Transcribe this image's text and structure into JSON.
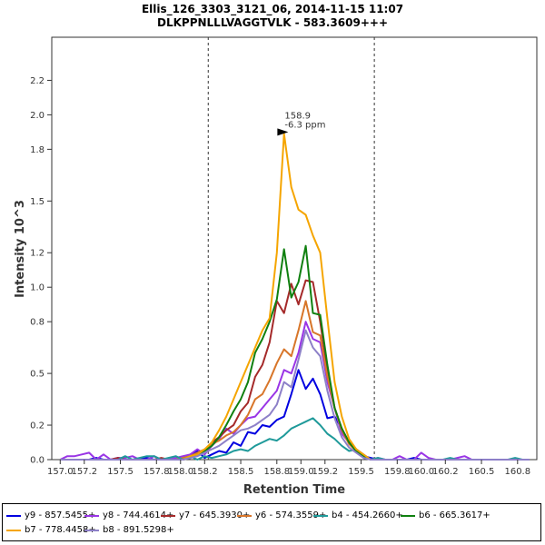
{
  "chart_data": {
    "type": "line",
    "title": "Ellis_126_3303_3121_06, 2014-11-15 11:07",
    "subtitle": "DLKPPNLLLVAGGTVLK - 583.3609+++",
    "xlabel": "Retention Time",
    "ylabel": "Intensity 10^3",
    "xlim": [
      156.93,
      160.96
    ],
    "ylim": [
      0,
      2.45
    ],
    "xticks": [
      157.0,
      157.2,
      157.5,
      157.8,
      158.0,
      158.2,
      158.5,
      158.8,
      159.0,
      159.2,
      159.5,
      159.8,
      160.0,
      160.2,
      160.5,
      160.8
    ],
    "xtick_labels": [
      "157.0",
      "157.2",
      "157.5",
      "157.8",
      "158.0",
      "158.2",
      "158.5",
      "158.8",
      "159.0",
      "159.2",
      "159.5",
      "159.8",
      "160.0",
      "160.2",
      "160.5",
      "160.8"
    ],
    "yticks": [
      0.0,
      0.2,
      0.5,
      0.8,
      1.0,
      1.2,
      1.5,
      1.8,
      2.0,
      2.2
    ],
    "ytick_labels": [
      "0.0",
      "0.2",
      "0.5",
      "0.8",
      "1.0",
      "1.2",
      "1.5",
      "1.8",
      "2.0",
      "2.2"
    ],
    "boundaries": [
      158.23,
      159.61
    ],
    "annotation": {
      "x": 158.91,
      "y": 1.9,
      "line1": "158.9",
      "line2": "-6.3 ppm",
      "color": "#f0a000"
    },
    "x": [
      157.0,
      157.06,
      157.12,
      157.18,
      157.24,
      157.3,
      157.36,
      157.42,
      157.48,
      157.54,
      157.6,
      157.66,
      157.72,
      157.78,
      157.84,
      157.9,
      157.96,
      158.02,
      158.08,
      158.14,
      158.2,
      158.26,
      158.32,
      158.38,
      158.44,
      158.5,
      158.56,
      158.62,
      158.68,
      158.74,
      158.8,
      158.86,
      158.92,
      158.98,
      159.04,
      159.1,
      159.16,
      159.22,
      159.28,
      159.34,
      159.4,
      159.46,
      159.52,
      159.58,
      159.64,
      159.7,
      159.76,
      159.82,
      159.88,
      159.94,
      160.0,
      160.06,
      160.12,
      160.18,
      160.24,
      160.3,
      160.36,
      160.42,
      160.48,
      160.54,
      160.6,
      160.66,
      160.72,
      160.78,
      160.84,
      160.9
    ],
    "series": [
      {
        "name": "y9 - 857.5455+",
        "color": "#0000e0",
        "values": [
          0.0,
          0.0,
          0.0,
          0.0,
          0.0,
          0.01,
          0.0,
          0.0,
          0.01,
          0.0,
          0.0,
          0.0,
          0.01,
          0.0,
          0.0,
          0.0,
          0.0,
          0.01,
          0.02,
          0.05,
          0.01,
          0.03,
          0.05,
          0.04,
          0.1,
          0.08,
          0.16,
          0.15,
          0.2,
          0.19,
          0.23,
          0.25,
          0.38,
          0.52,
          0.41,
          0.47,
          0.38,
          0.24,
          0.25,
          0.18,
          0.1,
          0.06,
          0.02,
          0.01,
          0.0,
          0.0,
          0.0,
          0.0,
          0.0,
          0.01,
          0.0,
          0.0,
          0.0,
          0.0,
          0.0,
          0.0,
          0.0,
          0.0,
          0.0,
          0.0,
          0.0,
          0.0,
          0.0,
          0.0,
          0.0,
          0.0
        ]
      },
      {
        "name": "y8 - 744.4614+",
        "color": "#9a35e6",
        "values": [
          0.0,
          0.02,
          0.02,
          0.03,
          0.04,
          0.0,
          0.03,
          0.0,
          0.01,
          0.01,
          0.02,
          0.0,
          0.0,
          0.02,
          0.0,
          0.0,
          0.01,
          0.02,
          0.03,
          0.06,
          0.03,
          0.08,
          0.12,
          0.18,
          0.15,
          0.2,
          0.24,
          0.25,
          0.3,
          0.35,
          0.4,
          0.52,
          0.5,
          0.62,
          0.8,
          0.7,
          0.68,
          0.45,
          0.3,
          0.15,
          0.1,
          0.06,
          0.03,
          0.0,
          0.01,
          0.0,
          0.0,
          0.02,
          0.0,
          0.0,
          0.04,
          0.01,
          0.0,
          0.0,
          0.0,
          0.01,
          0.02,
          0.0,
          0.0,
          0.0,
          0.0,
          0.0,
          0.0,
          0.0,
          0.0,
          0.0
        ]
      },
      {
        "name": "y7 - 645.3930+",
        "color": "#a52a2a",
        "values": [
          0.0,
          0.0,
          0.0,
          0.0,
          0.0,
          0.0,
          0.0,
          0.0,
          0.01,
          0.0,
          0.0,
          0.0,
          0.0,
          0.0,
          0.01,
          0.0,
          0.0,
          0.0,
          0.01,
          0.03,
          0.05,
          0.1,
          0.13,
          0.17,
          0.2,
          0.28,
          0.33,
          0.48,
          0.55,
          0.68,
          0.92,
          0.85,
          1.02,
          0.9,
          1.04,
          1.03,
          0.8,
          0.52,
          0.3,
          0.18,
          0.1,
          0.05,
          0.02,
          0.0,
          0.0,
          0.0,
          0.0,
          0.0,
          0.0,
          0.0,
          0.0,
          0.0,
          0.0,
          0.0,
          0.0,
          0.0,
          0.0,
          0.0,
          0.0,
          0.0,
          0.0,
          0.0,
          0.0,
          0.0,
          0.0,
          0.0
        ]
      },
      {
        "name": "y6 - 574.3559+",
        "color": "#d8762a",
        "values": [
          0.0,
          0.0,
          0.0,
          0.0,
          0.0,
          0.0,
          0.0,
          0.0,
          0.0,
          0.0,
          0.0,
          0.0,
          0.0,
          0.0,
          0.0,
          0.0,
          0.0,
          0.01,
          0.02,
          0.04,
          0.06,
          0.09,
          0.11,
          0.14,
          0.16,
          0.2,
          0.26,
          0.35,
          0.38,
          0.46,
          0.56,
          0.64,
          0.6,
          0.75,
          0.92,
          0.74,
          0.72,
          0.48,
          0.3,
          0.17,
          0.09,
          0.05,
          0.02,
          0.0,
          0.0,
          0.0,
          0.0,
          0.0,
          0.0,
          0.0,
          0.0,
          0.0,
          0.0,
          0.0,
          0.0,
          0.0,
          0.0,
          0.0,
          0.0,
          0.0,
          0.0,
          0.0,
          0.0,
          0.0,
          0.0,
          0.0
        ]
      },
      {
        "name": "b4 - 454.2660+",
        "color": "#1f9a9a",
        "values": [
          0.0,
          0.0,
          0.0,
          0.0,
          0.0,
          0.0,
          0.0,
          0.0,
          0.0,
          0.02,
          0.0,
          0.01,
          0.02,
          0.02,
          0.0,
          0.01,
          0.02,
          0.0,
          0.02,
          0.0,
          0.02,
          0.01,
          0.02,
          0.03,
          0.05,
          0.06,
          0.05,
          0.08,
          0.1,
          0.12,
          0.11,
          0.14,
          0.18,
          0.2,
          0.22,
          0.24,
          0.2,
          0.15,
          0.12,
          0.08,
          0.05,
          0.06,
          0.02,
          0.0,
          0.01,
          0.0,
          0.0,
          0.0,
          0.0,
          0.0,
          0.0,
          0.0,
          0.0,
          0.0,
          0.01,
          0.0,
          0.0,
          0.0,
          0.0,
          0.0,
          0.0,
          0.0,
          0.0,
          0.01,
          0.0,
          0.0
        ]
      },
      {
        "name": "b6 - 665.3617+",
        "color": "#108010",
        "values": [
          0.0,
          0.0,
          0.0,
          0.0,
          0.0,
          0.0,
          0.0,
          0.0,
          0.0,
          0.0,
          0.0,
          0.0,
          0.0,
          0.0,
          0.0,
          0.0,
          0.0,
          0.0,
          0.01,
          0.03,
          0.05,
          0.08,
          0.13,
          0.2,
          0.28,
          0.35,
          0.45,
          0.62,
          0.7,
          0.8,
          0.93,
          1.22,
          0.94,
          1.03,
          1.24,
          0.85,
          0.84,
          0.55,
          0.3,
          0.18,
          0.1,
          0.05,
          0.02,
          0.0,
          0.0,
          0.0,
          0.0,
          0.0,
          0.0,
          0.0,
          0.0,
          0.0,
          0.0,
          0.0,
          0.0,
          0.0,
          0.0,
          0.0,
          0.0,
          0.0,
          0.0,
          0.0,
          0.0,
          0.0,
          0.0,
          0.0
        ]
      },
      {
        "name": "b7 - 778.4458+",
        "color": "#f5a500",
        "values": [
          0.0,
          0.0,
          0.0,
          0.0,
          0.0,
          0.0,
          0.0,
          0.0,
          0.0,
          0.0,
          0.0,
          0.0,
          0.0,
          0.0,
          0.0,
          0.0,
          0.0,
          0.0,
          0.02,
          0.03,
          0.06,
          0.1,
          0.17,
          0.25,
          0.35,
          0.45,
          0.55,
          0.65,
          0.75,
          0.82,
          1.2,
          1.89,
          1.58,
          1.45,
          1.42,
          1.3,
          1.2,
          0.82,
          0.45,
          0.25,
          0.12,
          0.06,
          0.03,
          0.0,
          0.0,
          0.0,
          0.0,
          0.0,
          0.0,
          0.0,
          0.0,
          0.0,
          0.0,
          0.0,
          0.0,
          0.0,
          0.0,
          0.0,
          0.0,
          0.0,
          0.0,
          0.0,
          0.0,
          0.0,
          0.0,
          0.0
        ]
      },
      {
        "name": "b8 - 891.5298+",
        "color": "#8d80c8",
        "values": [
          0.0,
          0.0,
          0.0,
          0.0,
          0.0,
          0.0,
          0.0,
          0.0,
          0.0,
          0.0,
          0.0,
          0.0,
          0.0,
          0.0,
          0.0,
          0.0,
          0.0,
          0.0,
          0.01,
          0.02,
          0.04,
          0.06,
          0.08,
          0.11,
          0.14,
          0.17,
          0.18,
          0.2,
          0.23,
          0.26,
          0.32,
          0.45,
          0.42,
          0.58,
          0.75,
          0.65,
          0.6,
          0.4,
          0.24,
          0.13,
          0.07,
          0.04,
          0.01,
          0.0,
          0.0,
          0.0,
          0.0,
          0.0,
          0.0,
          0.0,
          0.0,
          0.0,
          0.0,
          0.0,
          0.0,
          0.0,
          0.0,
          0.0,
          0.0,
          0.0,
          0.0,
          0.0,
          0.0,
          0.0,
          0.0,
          0.0
        ]
      }
    ]
  }
}
